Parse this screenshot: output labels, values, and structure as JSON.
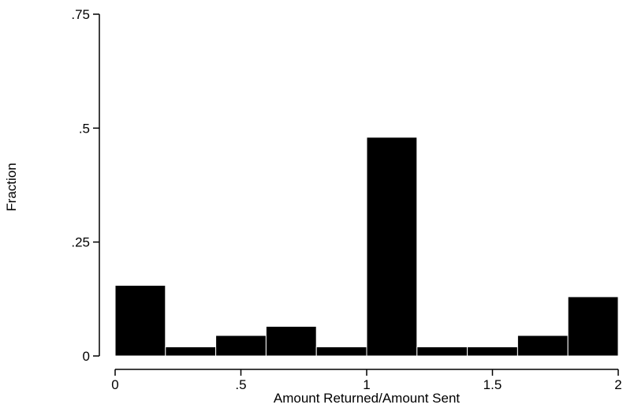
{
  "chart_data": {
    "type": "bar",
    "title": "",
    "xlabel": "Amount Returned/Amount Sent",
    "ylabel": "Fraction",
    "bin_edges": [
      0,
      0.2,
      0.4,
      0.6,
      0.8,
      1.0,
      1.2,
      1.4,
      1.6,
      1.8,
      2.0
    ],
    "values": [
      0.155,
      0.02,
      0.045,
      0.065,
      0.02,
      0.48,
      0.02,
      0.02,
      0.045,
      0.13
    ],
    "xlim": [
      0,
      2
    ],
    "ylim": [
      0,
      0.75
    ],
    "x_ticks": [
      {
        "value": 0,
        "label": "0"
      },
      {
        "value": 0.5,
        "label": ".5"
      },
      {
        "value": 1,
        "label": "1"
      },
      {
        "value": 1.5,
        "label": "1.5"
      },
      {
        "value": 2,
        "label": "2"
      }
    ],
    "y_ticks": [
      {
        "value": 0,
        "label": "0"
      },
      {
        "value": 0.25,
        "label": ".25"
      },
      {
        "value": 0.5,
        "label": ".5"
      },
      {
        "value": 0.75,
        "label": ".75"
      }
    ],
    "grid": false,
    "bar_color": "#000000",
    "axis_color": "#000000"
  }
}
